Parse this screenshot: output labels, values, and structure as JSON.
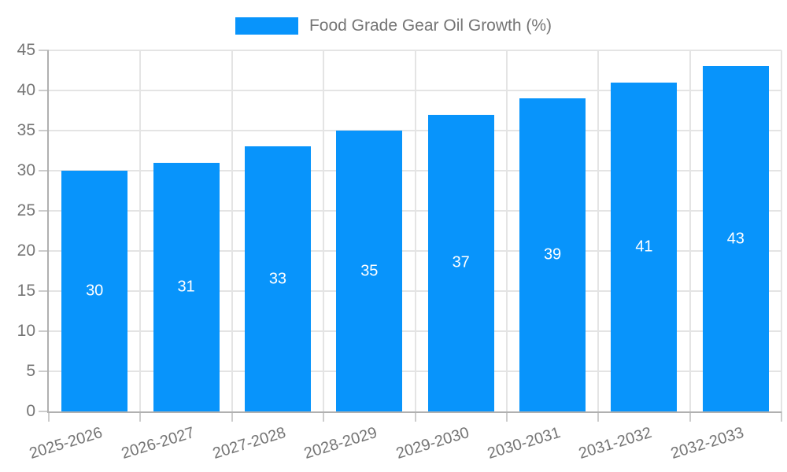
{
  "legend": {
    "label": "Food Grade Gear Oil Growth (%)"
  },
  "chart_data": {
    "type": "bar",
    "title": "Food Grade Gear Oil Growth (%)",
    "series_name": "Food Grade Gear Oil Growth (%)",
    "categories": [
      "2025-2026",
      "2026-2027",
      "2027-2028",
      "2028-2029",
      "2029-2030",
      "2030-2031",
      "2031-2032",
      "2032-2033"
    ],
    "values": [
      30,
      31,
      33,
      35,
      37,
      39,
      41,
      43
    ],
    "xlabel": "",
    "ylabel": "",
    "ylim": [
      0,
      45
    ],
    "ytick_step": 5,
    "grid": true,
    "legend_position": "top-center",
    "colors": {
      "bar": "#0894fb",
      "bar_value_text": "#ffffff",
      "axis_text": "#757575",
      "gridline": "#e4e4e4",
      "axis_line": "#b0b0b0",
      "tick": "#cccccc"
    }
  }
}
